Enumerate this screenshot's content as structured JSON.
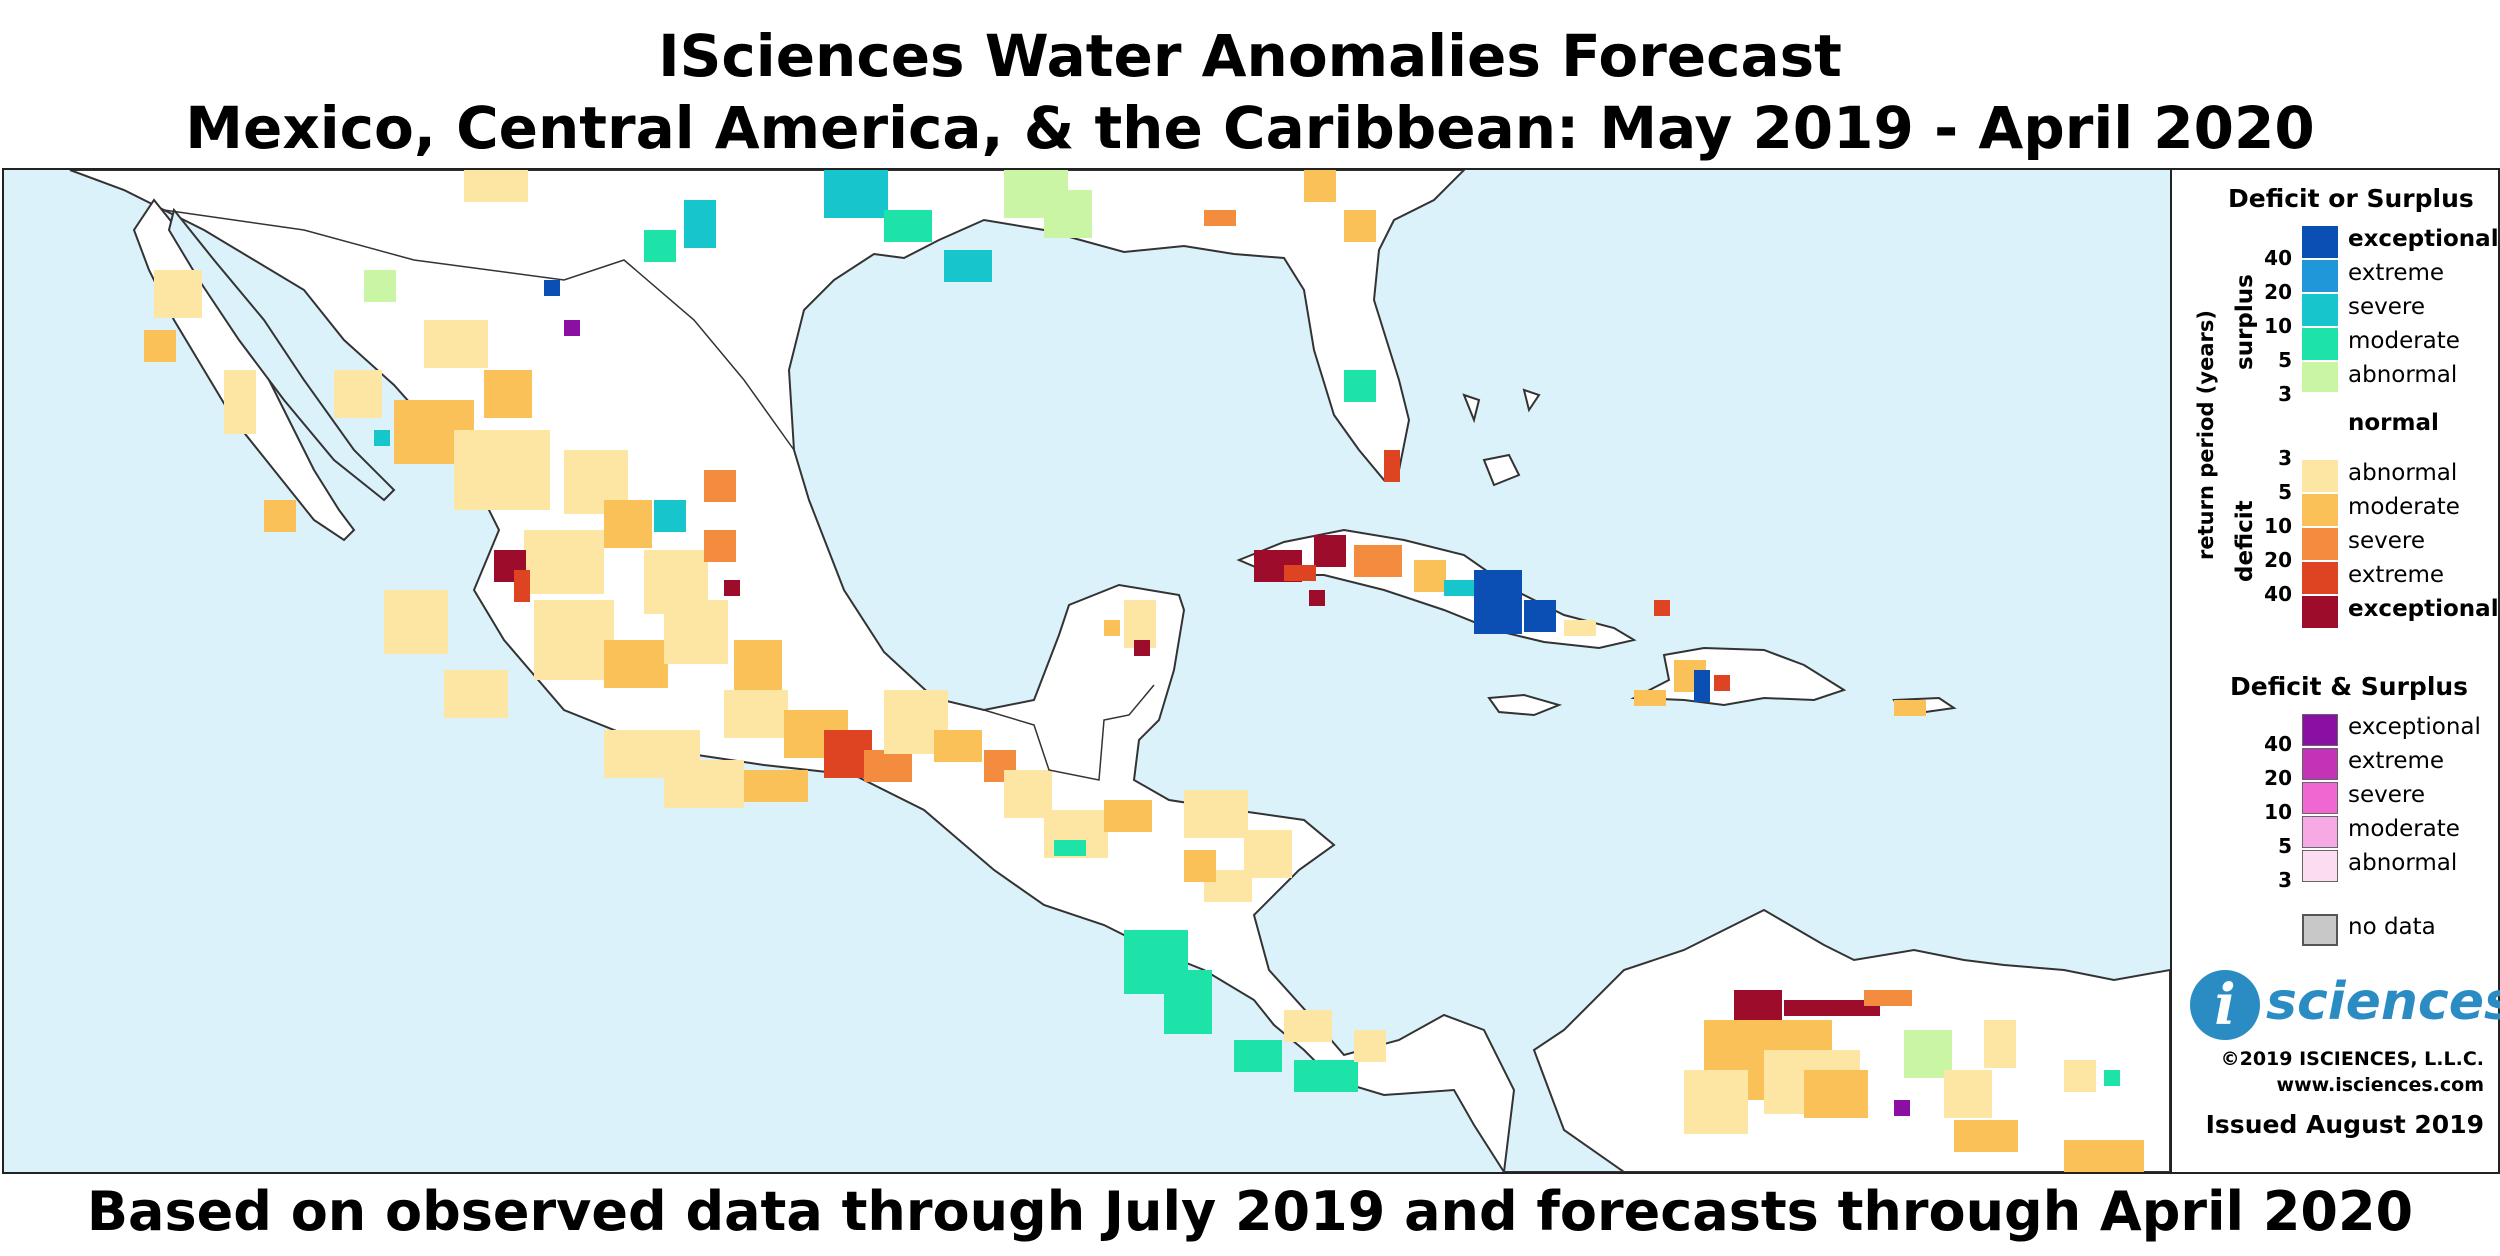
{
  "title": {
    "line1": "ISciences Water Anomalies Forecast",
    "line2": "Mexico, Central America, & the Caribbean: May 2019 - April 2020"
  },
  "footer": "Based on observed data through July 2019 and forecasts through April 2020",
  "legend": {
    "section1_heading": "Deficit or Surplus",
    "axis_label": "return period (years)",
    "surplus_label": "surplus",
    "deficit_label": "deficit",
    "surplus_items": [
      {
        "label": "exceptional",
        "color": "#0b4fb5"
      },
      {
        "label": "extreme",
        "color": "#1f97d9"
      },
      {
        "label": "severe",
        "color": "#17c5cc"
      },
      {
        "label": "moderate",
        "color": "#1ee3a8"
      },
      {
        "label": "abnormal",
        "color": "#c9f5a4"
      }
    ],
    "normal_label": "normal",
    "deficit_items": [
      {
        "label": "abnormal",
        "color": "#fde5a3"
      },
      {
        "label": "moderate",
        "color": "#f9c158"
      },
      {
        "label": "severe",
        "color": "#f48c40"
      },
      {
        "label": "extreme",
        "color": "#de4322"
      },
      {
        "label": "exceptional",
        "color": "#9e0c2c"
      }
    ],
    "surplus_ticks": [
      "40",
      "20",
      "10",
      "5",
      "3"
    ],
    "deficit_ticks": [
      "3",
      "5",
      "10",
      "20",
      "40"
    ],
    "section2_heading": "Deficit & Surplus",
    "both_items": [
      {
        "label": "exceptional",
        "color": "#8a0fa3"
      },
      {
        "label": "extreme",
        "color": "#c433b7"
      },
      {
        "label": "severe",
        "color": "#f067d1"
      },
      {
        "label": "moderate",
        "color": "#f6a9e4"
      },
      {
        "label": "abnormal",
        "color": "#fbdcf0"
      }
    ],
    "both_ticks": [
      "40",
      "20",
      "10",
      "5",
      "3"
    ],
    "nodata_label": "no data",
    "nodata_color": "#c8c8c8"
  },
  "branding": {
    "logo_letter": "i",
    "logo_word": "sciences",
    "copyright": "©2019 ISCIENCES, L.L.C.",
    "website": "www.isciences.com",
    "issued": "Issued August 2019"
  },
  "map": {
    "ocean_color": "#dbf2fb",
    "land_color": "#ffffff",
    "coast_color": "#333333"
  }
}
